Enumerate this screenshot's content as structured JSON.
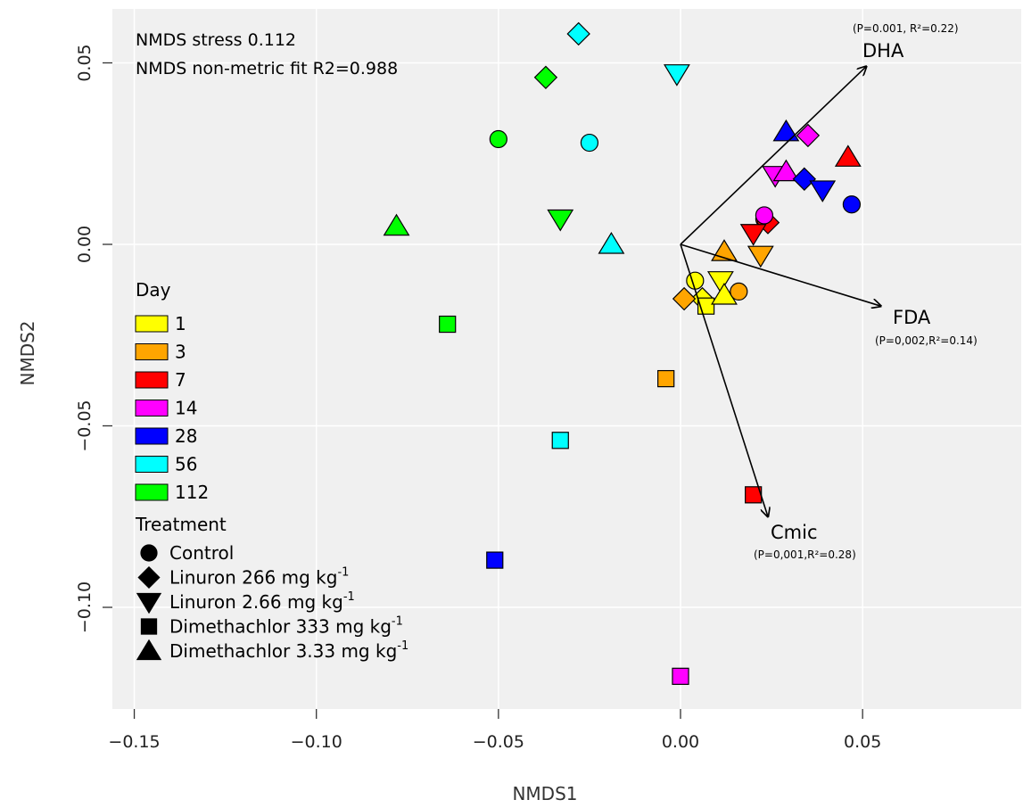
{
  "chart_data": {
    "type": "scatter",
    "xlabel": "NMDS1",
    "ylabel": "NMDS2",
    "xlim": [
      -0.157,
      0.094
    ],
    "ylim": [
      -0.127,
      0.066
    ],
    "xticks": [
      -0.15,
      -0.1,
      -0.05,
      0.0,
      0.05
    ],
    "xtick_labels": [
      "−0.15",
      "−0.10",
      "−0.05",
      "0.00",
      "0.05"
    ],
    "yticks": [
      -0.1,
      -0.05,
      0.0,
      0.05
    ],
    "ytick_labels": [
      "−0.10",
      "−0.05",
      "0.00",
      "0.05"
    ],
    "grid": true,
    "annotations": [
      "NMDS stress 0.112",
      "NMDS non-metric fit R2=0.988"
    ],
    "day_legend": {
      "title": "Day",
      "entries": [
        {
          "label": "1",
          "color": "#ffff00"
        },
        {
          "label": "3",
          "color": "#ffa500"
        },
        {
          "label": "7",
          "color": "#ff0000"
        },
        {
          "label": "14",
          "color": "#ff00ff"
        },
        {
          "label": "28",
          "color": "#0000ff"
        },
        {
          "label": "56",
          "color": "#00ffff"
        },
        {
          "label": "112",
          "color": "#00ff00"
        }
      ]
    },
    "treatment_legend": {
      "title": "Treatment",
      "entries": [
        {
          "shape": "circle",
          "label": "Control",
          "sup": ""
        },
        {
          "shape": "diamond",
          "label": "Linuron 266 mg kg",
          "sup": "-1"
        },
        {
          "shape": "triangle-down",
          "label": "Linuron 2.66 mg kg",
          "sup": "-1"
        },
        {
          "shape": "square",
          "label": "Dimethachlor 333 mg kg",
          "sup": "-1"
        },
        {
          "shape": "triangle-up",
          "label": "Dimethachlor 3.33 mg kg",
          "sup": "-1"
        }
      ]
    },
    "vectors": [
      {
        "name": "DHA",
        "x": 0.051,
        "y": 0.049,
        "stat": "(P=0.001, R²=0.22)"
      },
      {
        "name": "FDA",
        "x": 0.055,
        "y": -0.017,
        "stat": "(P=0,002,R²=0.14)"
      },
      {
        "name": "Cmic",
        "x": 0.024,
        "y": -0.075,
        "stat": "(P=0,001,R²=0.28)"
      }
    ],
    "points": [
      {
        "x": 0.004,
        "y": -0.01,
        "day": "1",
        "shape": "circle"
      },
      {
        "x": 0.006,
        "y": -0.015,
        "day": "1",
        "shape": "diamond"
      },
      {
        "x": 0.011,
        "y": -0.01,
        "day": "1",
        "shape": "triangle-down"
      },
      {
        "x": 0.007,
        "y": -0.017,
        "day": "1",
        "shape": "square"
      },
      {
        "x": 0.012,
        "y": -0.014,
        "day": "1",
        "shape": "triangle-up"
      },
      {
        "x": 0.016,
        "y": -0.013,
        "day": "3",
        "shape": "circle"
      },
      {
        "x": 0.001,
        "y": -0.015,
        "day": "3",
        "shape": "diamond"
      },
      {
        "x": 0.022,
        "y": -0.003,
        "day": "3",
        "shape": "triangle-down"
      },
      {
        "x": -0.004,
        "y": -0.037,
        "day": "3",
        "shape": "square"
      },
      {
        "x": 0.012,
        "y": -0.002,
        "day": "3",
        "shape": "triangle-up"
      },
      {
        "x": 0.023,
        "y": 0.007,
        "day": "7",
        "shape": "circle"
      },
      {
        "x": 0.024,
        "y": 0.006,
        "day": "7",
        "shape": "diamond"
      },
      {
        "x": 0.02,
        "y": 0.003,
        "day": "7",
        "shape": "triangle-down"
      },
      {
        "x": 0.02,
        "y": -0.069,
        "day": "7",
        "shape": "square"
      },
      {
        "x": 0.046,
        "y": 0.024,
        "day": "7",
        "shape": "triangle-up"
      },
      {
        "x": 0.023,
        "y": 0.008,
        "day": "14",
        "shape": "circle"
      },
      {
        "x": 0.035,
        "y": 0.03,
        "day": "14",
        "shape": "diamond"
      },
      {
        "x": 0.026,
        "y": 0.019,
        "day": "14",
        "shape": "triangle-down"
      },
      {
        "x": 0.0,
        "y": -0.119,
        "day": "14",
        "shape": "square"
      },
      {
        "x": 0.029,
        "y": 0.02,
        "day": "14",
        "shape": "triangle-up"
      },
      {
        "x": 0.047,
        "y": 0.011,
        "day": "28",
        "shape": "circle"
      },
      {
        "x": 0.034,
        "y": 0.018,
        "day": "28",
        "shape": "diamond"
      },
      {
        "x": 0.039,
        "y": 0.015,
        "day": "28",
        "shape": "triangle-down"
      },
      {
        "x": -0.051,
        "y": -0.087,
        "day": "28",
        "shape": "square"
      },
      {
        "x": 0.029,
        "y": 0.031,
        "day": "28",
        "shape": "triangle-up"
      },
      {
        "x": -0.025,
        "y": 0.028,
        "day": "56",
        "shape": "circle"
      },
      {
        "x": -0.028,
        "y": 0.058,
        "day": "56",
        "shape": "diamond"
      },
      {
        "x": -0.001,
        "y": 0.047,
        "day": "56",
        "shape": "triangle-down"
      },
      {
        "x": -0.033,
        "y": -0.054,
        "day": "56",
        "shape": "square"
      },
      {
        "x": -0.019,
        "y": 0.0,
        "day": "56",
        "shape": "triangle-up"
      },
      {
        "x": -0.05,
        "y": 0.029,
        "day": "112",
        "shape": "circle"
      },
      {
        "x": -0.037,
        "y": 0.046,
        "day": "112",
        "shape": "diamond"
      },
      {
        "x": -0.033,
        "y": 0.007,
        "day": "112",
        "shape": "triangle-down"
      },
      {
        "x": -0.064,
        "y": -0.022,
        "day": "112",
        "shape": "square"
      },
      {
        "x": -0.078,
        "y": 0.005,
        "day": "112",
        "shape": "triangle-up"
      }
    ]
  }
}
